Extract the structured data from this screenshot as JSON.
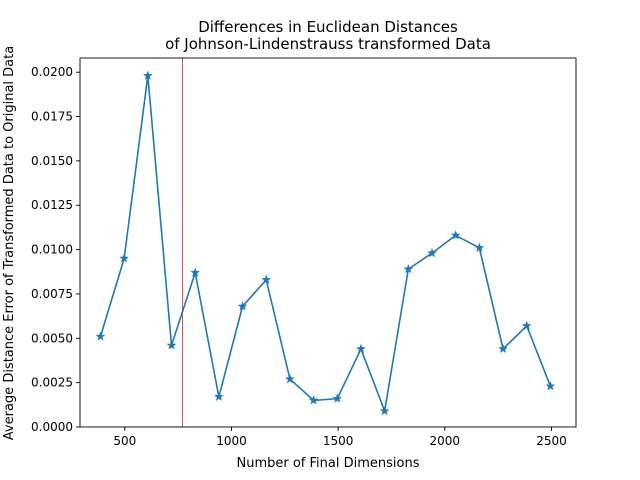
{
  "chart_data": {
    "type": "line",
    "title_line1": "Differences in Euclidean Distances",
    "title_line2": "of Johnson-Lindenstrauss transformed Data",
    "xlabel": "Number of Final Dimensions",
    "ylabel": "Average Distance Error of Transformed Data to Original Data",
    "xlim": [
      290,
      2615
    ],
    "ylim": [
      0,
      0.0208
    ],
    "x_ticks": [
      500,
      1000,
      1500,
      2000,
      2500
    ],
    "y_ticks": [
      0.0,
      0.0025,
      0.005,
      0.0075,
      0.01,
      0.0125,
      0.015,
      0.0175,
      0.02
    ],
    "y_tick_labels": [
      "0.0000",
      "0.0025",
      "0.0050",
      "0.0075",
      "0.0100",
      "0.0125",
      "0.0150",
      "0.0175",
      "0.0200"
    ],
    "marker": "star",
    "grid": false,
    "series": [
      {
        "color": "#1f77b4",
        "x": [
          386,
          497,
          608,
          719,
          830,
          941,
          1052,
          1163,
          1274,
          1385,
          1496,
          1607,
          1718,
          1829,
          1940,
          2051,
          2162,
          2273,
          2384,
          2495
        ],
        "y": [
          0.0051,
          0.0095,
          0.0198,
          0.0046,
          0.0087,
          0.0017,
          0.0068,
          0.0083,
          0.0027,
          0.0015,
          0.0016,
          0.0044,
          0.0009,
          0.0089,
          0.0098,
          0.0108,
          0.0101,
          0.0044,
          0.0057,
          0.0023
        ]
      }
    ],
    "vline": {
      "x": 770,
      "color": "#d62728"
    }
  }
}
